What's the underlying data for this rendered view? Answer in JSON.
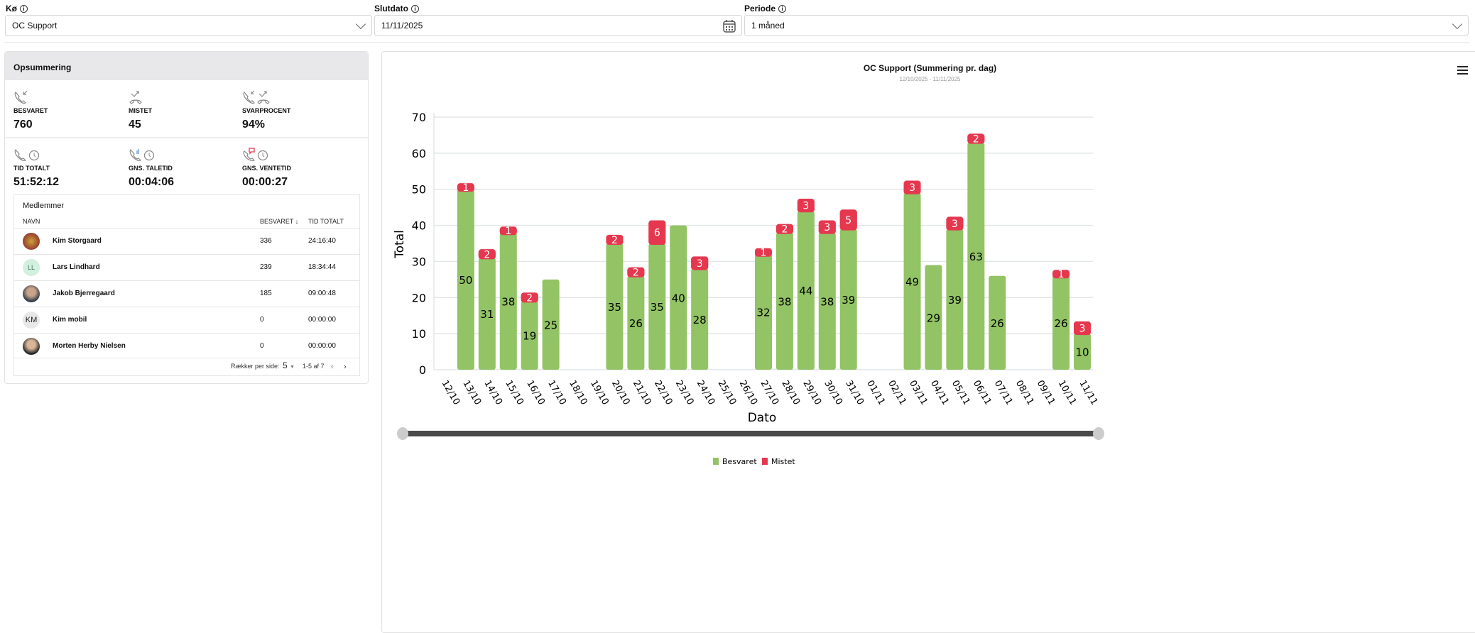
{
  "filters": {
    "queue": {
      "label": "Kø",
      "value": "OC Support"
    },
    "end_date": {
      "label": "Slutdato",
      "value": "11/11/2025"
    },
    "period": {
      "label": "Periode",
      "value": "1 måned"
    }
  },
  "summary": {
    "title": "Opsummering",
    "stats": [
      {
        "label": "BESVARET",
        "value": "760",
        "icon": "phone-incoming-icon"
      },
      {
        "label": "MISTET",
        "value": "45",
        "icon": "phone-missed-icon"
      },
      {
        "label": "SVARPROCENT",
        "value": "94%",
        "icon": "answer-rate-icon"
      },
      {
        "label": "TID TOTALT",
        "value": "51:52:12",
        "icon": "phone-clock-icon"
      },
      {
        "label": "GNS. TALETID",
        "value": "00:04:06",
        "icon": "talk-time-icon"
      },
      {
        "label": "GNS. VENTETID",
        "value": "00:00:27",
        "icon": "wait-time-icon"
      }
    ]
  },
  "members": {
    "title": "Medlemmer",
    "columns": [
      "NAVN",
      "BESVARET",
      "TID TOTALT"
    ],
    "rows": [
      {
        "name": "Kim Storgaard",
        "answered": "336",
        "total": "24:16:40",
        "initials": ""
      },
      {
        "name": "Lars Lindhard",
        "answered": "239",
        "total": "18:34:44",
        "initials": "LL"
      },
      {
        "name": "Jakob Bjerregaard",
        "answered": "185",
        "total": "09:00:48",
        "initials": ""
      },
      {
        "name": "Kim mobil",
        "answered": "0",
        "total": "00:00:00",
        "initials": "KM"
      },
      {
        "name": "Morten Herby Nielsen",
        "answered": "0",
        "total": "00:00:00",
        "initials": ""
      }
    ],
    "pagination": {
      "rows_per_page_label": "Rækker per side:",
      "rows_per_page": "5",
      "range": "1-5 af 7"
    }
  },
  "chart_data": {
    "type": "bar",
    "stacked": true,
    "title": "OC Support (Summering pr. dag)",
    "subtitle": "12/10/2025 - 11/11/2025",
    "xlabel": "Dato",
    "ylabel": "Total",
    "ylim": [
      0,
      70
    ],
    "yticks": [
      0,
      10,
      20,
      30,
      40,
      50,
      60,
      70
    ],
    "grid": true,
    "legend_position": "bottom",
    "categories": [
      "12/10",
      "13/10",
      "14/10",
      "15/10",
      "16/10",
      "17/10",
      "18/10",
      "19/10",
      "20/10",
      "21/10",
      "22/10",
      "23/10",
      "24/10",
      "25/10",
      "26/10",
      "27/10",
      "28/10",
      "29/10",
      "30/10",
      "31/10",
      "01/11",
      "02/11",
      "03/11",
      "04/11",
      "05/11",
      "06/11",
      "07/11",
      "08/11",
      "09/11",
      "10/11",
      "11/11"
    ],
    "series": [
      {
        "name": "Besvaret",
        "color": "#92c364",
        "values": [
          0,
          50,
          31,
          38,
          19,
          25,
          0,
          0,
          35,
          26,
          35,
          40,
          28,
          0,
          0,
          32,
          38,
          44,
          38,
          39,
          0,
          0,
          49,
          29,
          39,
          63,
          26,
          0,
          0,
          26,
          10
        ]
      },
      {
        "name": "Mistet",
        "color": "#e5384f",
        "values": [
          0,
          1,
          2,
          1,
          2,
          0,
          0,
          0,
          2,
          2,
          6,
          0,
          3,
          0,
          0,
          1,
          2,
          3,
          3,
          5,
          0,
          0,
          3,
          0,
          3,
          2,
          0,
          0,
          0,
          1,
          3
        ]
      }
    ]
  }
}
